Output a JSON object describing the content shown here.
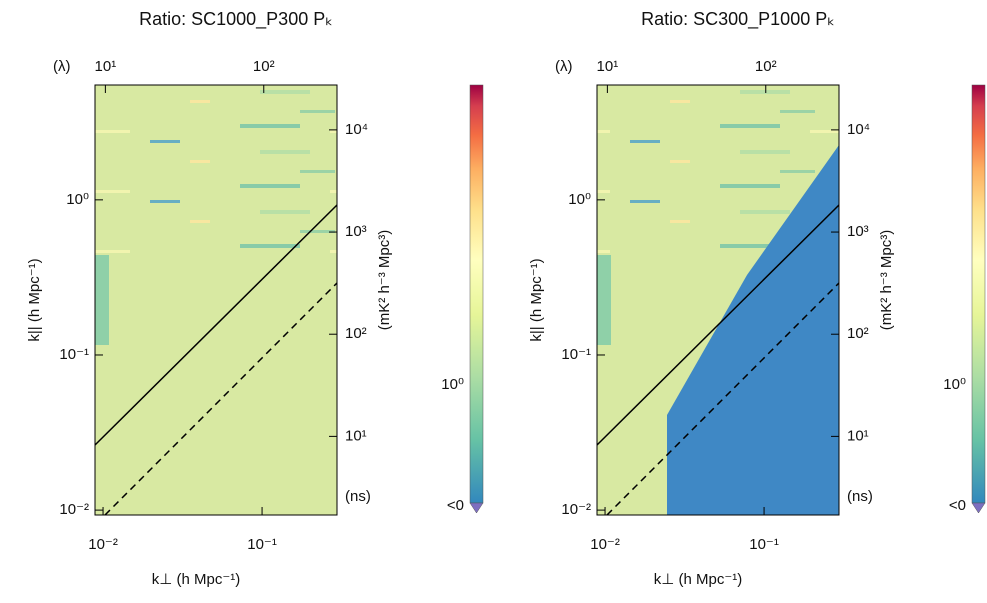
{
  "chart_data": [
    {
      "type": "heatmap",
      "title": "Ratio: SC1000_P300 Pₖ",
      "xlabel": "k⊥ (h Mpc⁻¹)",
      "ylabel": "k|| (h Mpc⁻¹)",
      "x2label": "(λ)",
      "y2label": "(ns)",
      "colorbar_label": "(mK² h⁻³ Mpc³)",
      "colorbar_labels": [
        "10⁰",
        "<0"
      ],
      "xscale": "log",
      "yscale": "log",
      "xlim": [
        0.0089,
        0.296
      ],
      "xticks": [
        {
          "value": 0.01,
          "label": "10⁻²"
        },
        {
          "value": 0.1,
          "label": "10⁻¹"
        }
      ],
      "ylim": [
        0.0093,
        5.5
      ],
      "yticks": [
        {
          "value": 0.01,
          "label": "10⁻²"
        },
        {
          "value": 0.1,
          "label": "10⁻¹"
        },
        {
          "value": 1,
          "label": "10⁰"
        }
      ],
      "x2lim": [
        8.6,
        290
      ],
      "x2ticks": [
        {
          "value": 10,
          "label": "10¹"
        },
        {
          "value": 100,
          "label": "10²"
        }
      ],
      "y2lim": [
        1.7,
        27500
      ],
      "y2ticks": [
        {
          "value": 10,
          "label": "10¹"
        },
        {
          "value": 100,
          "label": "10²"
        },
        {
          "value": 1000,
          "label": "10³"
        },
        {
          "value": 10000,
          "label": "10⁴"
        }
      ]
    },
    {
      "type": "heatmap",
      "title": "Ratio: SC300_P1000 Pₖ",
      "xlabel": "k⊥ (h Mpc⁻¹)",
      "ylabel": "k|| (h Mpc⁻¹)",
      "x2label": "(λ)",
      "y2label": "(ns)",
      "colorbar_label": "(mK² h⁻³ Mpc³)",
      "colorbar_labels": [
        "10⁰",
        "<0"
      ],
      "xscale": "log",
      "yscale": "log",
      "xlim": [
        0.0089,
        0.296
      ],
      "xticks": [
        {
          "value": 0.01,
          "label": "10⁻²"
        },
        {
          "value": 0.1,
          "label": "10⁻¹"
        }
      ],
      "ylim": [
        0.0093,
        5.5
      ],
      "yticks": [
        {
          "value": 0.01,
          "label": "10⁻²"
        },
        {
          "value": 0.1,
          "label": "10⁻¹"
        },
        {
          "value": 1,
          "label": "10⁰"
        }
      ],
      "x2lim": [
        8.6,
        290
      ],
      "x2ticks": [
        {
          "value": 10,
          "label": "10¹"
        },
        {
          "value": 100,
          "label": "10²"
        }
      ],
      "y2lim": [
        1.7,
        27500
      ],
      "y2ticks": [
        {
          "value": 10,
          "label": "10¹"
        },
        {
          "value": 100,
          "label": "10²"
        },
        {
          "value": 1000,
          "label": "10³"
        },
        {
          "value": 10000,
          "label": "10⁴"
        }
      ]
    }
  ]
}
